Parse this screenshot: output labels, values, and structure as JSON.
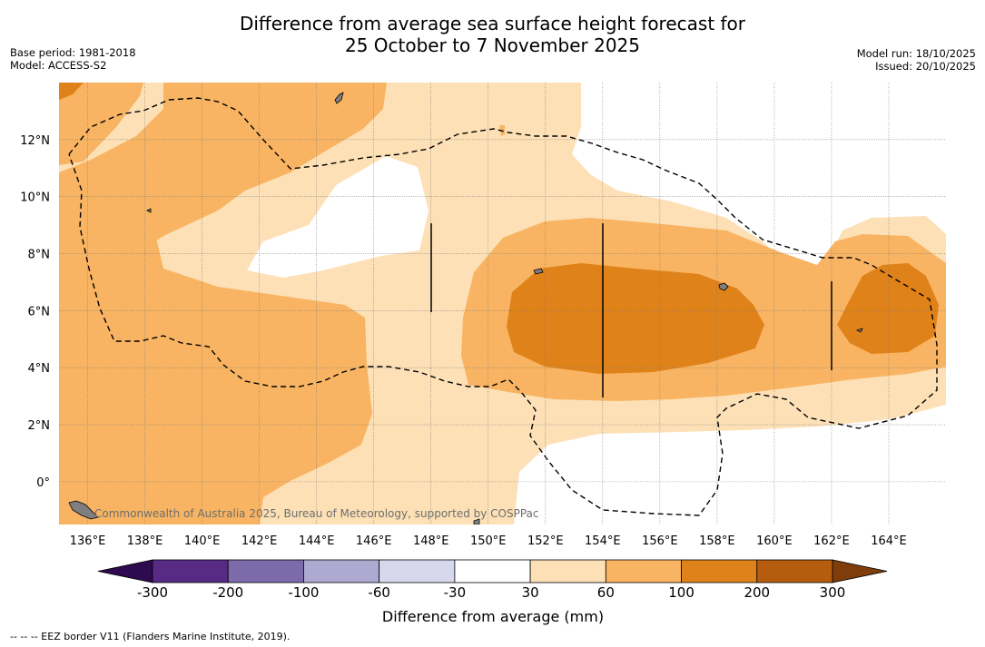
{
  "header": {
    "title_line1": "Difference from average sea surface height forecast for",
    "title_line2": "25 October to 7 November 2025",
    "base_period": "Base period: 1981-2018",
    "model": "Model: ACCESS-S2",
    "model_run": "Model run: 18/10/2025",
    "issued": "Issued: 20/10/2025"
  },
  "map": {
    "lon_labels": [
      {
        "lon": 136,
        "label": "136°E"
      },
      {
        "lon": 138,
        "label": "138°E"
      },
      {
        "lon": 140,
        "label": "140°E"
      },
      {
        "lon": 142,
        "label": "142°E"
      },
      {
        "lon": 144,
        "label": "144°E"
      },
      {
        "lon": 146,
        "label": "146°E"
      },
      {
        "lon": 148,
        "label": "148°E"
      },
      {
        "lon": 150,
        "label": "150°E"
      },
      {
        "lon": 152,
        "label": "152°E"
      },
      {
        "lon": 154,
        "label": "154°E"
      },
      {
        "lon": 156,
        "label": "156°E"
      },
      {
        "lon": 158,
        "label": "158°E"
      },
      {
        "lon": 160,
        "label": "160°E"
      },
      {
        "lon": 162,
        "label": "162°E"
      },
      {
        "lon": 164,
        "label": "164°E"
      }
    ],
    "lat_labels": [
      {
        "lat": 12,
        "label": "12°N"
      },
      {
        "lat": 10,
        "label": "10°N"
      },
      {
        "lat": 8,
        "label": "8°N"
      },
      {
        "lat": 6,
        "label": "6°N"
      },
      {
        "lat": 4,
        "label": "4°N"
      },
      {
        "lat": 2,
        "label": "2°N"
      },
      {
        "lat": 0,
        "label": "0°"
      }
    ],
    "lon_range": [
      135,
      166
    ],
    "lat_range": [
      -1.5,
      14
    ],
    "credit": "Commonwealth of Australia 2025, Bureau of Meteorology, supported by COSPPac",
    "colors": {
      "band_30_60": "#fde0b6",
      "band_60_100": "#f8b462",
      "band_100_200": "#e0821a",
      "band_200_300": "#b65c0e",
      "land": "#7f7f7f"
    }
  },
  "colorbar": {
    "label": "Difference from average (mm)",
    "ticks": [
      "-300",
      "-200",
      "-100",
      "-60",
      "-30",
      "30",
      "60",
      "100",
      "200",
      "300"
    ],
    "colors": [
      "#572a86",
      "#7c6aab",
      "#aea9d1",
      "#d8d8ec",
      "#ffffff",
      "#fde0b6",
      "#f8b462",
      "#e0821a",
      "#b65c0e"
    ],
    "under_color": "#2e0a50",
    "over_color": "#7e3d0a"
  },
  "footnote": "--  --  -- EEZ border V11 (Flanders Marine Institute, 2019)."
}
